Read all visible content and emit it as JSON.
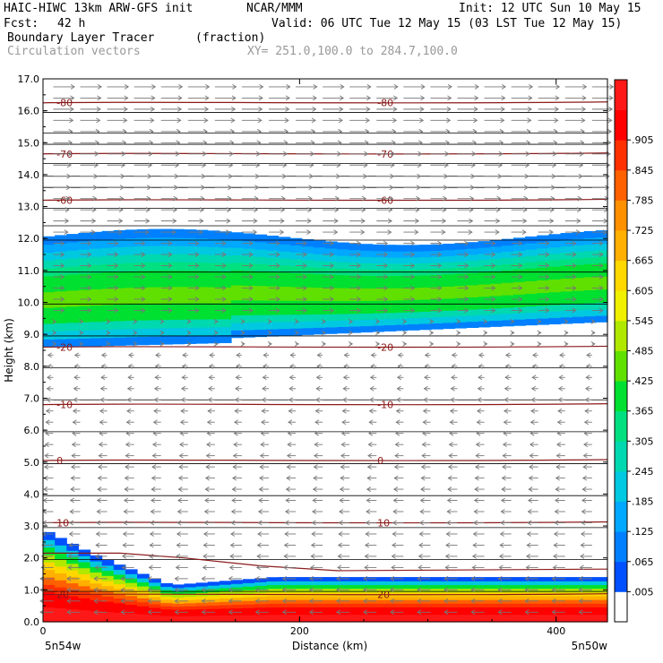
{
  "header": {
    "model": "HAIC-HIWC 13km ARW-GFS init",
    "org": "NCAR/MMM",
    "init": "Init: 12 UTC Sun 10 May 15",
    "fcst_label": "Fcst:",
    "fcst_value": "42 h",
    "valid": "Valid: 06 UTC Tue 12 May 15 (03 LST Tue 12 May 15)",
    "field_name": "Boundary Layer Tracer",
    "field_units": "(fraction)",
    "vector_label": "Circulation vectors",
    "xy_label": "XY= 251.0,100.0 to 284.7,100.0"
  },
  "chart_data": {
    "type": "heatmap",
    "xlabel": "Distance (km)",
    "ylabel": "Height (km)",
    "xlim": [
      0,
      440
    ],
    "ylim": [
      0,
      17
    ],
    "x_ticks": [
      "0",
      "200",
      "400"
    ],
    "y_ticks": [
      "0.0",
      "1.0",
      "2.0",
      "3.0",
      "4.0",
      "5.0",
      "6.0",
      "7.0",
      "8.0",
      "9.0",
      "10.0",
      "11.0",
      "12.0",
      "13.0",
      "14.0",
      "15.0",
      "16.0",
      "17.0"
    ],
    "x_end_labels": [
      "5n54w",
      "5n50w"
    ],
    "colorbar_labels": [
      ".005",
      ".065",
      ".125",
      ".185",
      ".245",
      ".305",
      ".365",
      ".425",
      ".485",
      ".545",
      ".605",
      ".665",
      ".725",
      ".785",
      ".845",
      ".905"
    ],
    "colorbar_colors": [
      "#ffffff",
      "#0050ff",
      "#0080ff",
      "#00a8ff",
      "#00c8e0",
      "#00d8b0",
      "#00e080",
      "#00e030",
      "#60e000",
      "#b0e800",
      "#f0f000",
      "#ffd800",
      "#ffb000",
      "#ff9000",
      "#ff6000",
      "#ff3000",
      "#ff0000",
      "#ff1818"
    ],
    "temperature_contours": [
      {
        "label": "-80",
        "height": 16.25
      },
      {
        "label": "-70",
        "height": 14.65
      },
      {
        "label": "-60",
        "height": 13.2
      },
      {
        "label": "-20",
        "height": 8.6
      },
      {
        "label": "-10",
        "height": 6.8
      },
      {
        "label": "0",
        "height": 5.05
      },
      {
        "label": "10",
        "height": 3.1
      },
      {
        "label": "20",
        "height": 0.85
      }
    ],
    "upper_layer": {
      "bottom_km": 9.4,
      "top_km": 12.3,
      "max_fraction": 0.45
    },
    "boundary_layer": {
      "top_km_west": 2.9,
      "top_km_east": 1.4,
      "max_fraction": 0.95
    },
    "colors": {
      "contour": "#8b1a1a",
      "vector": "#777777",
      "grid": "#000000"
    }
  }
}
